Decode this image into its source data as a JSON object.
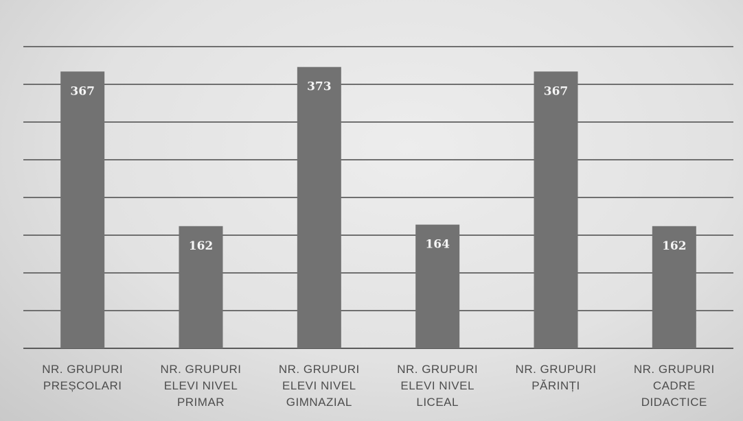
{
  "chart_data": {
    "type": "bar",
    "categories": [
      [
        "NR. GRUPURI",
        "PREȘCOLARI"
      ],
      [
        "NR. GRUPURI",
        "ELEVI NIVEL",
        "PRIMAR"
      ],
      [
        "NR. GRUPURI",
        "ELEVI NIVEL",
        "GIMNAZIAL"
      ],
      [
        "NR. GRUPURI",
        "ELEVI NIVEL",
        "LICEAL"
      ],
      [
        "NR. GRUPURI",
        "PĂRINȚI"
      ],
      [
        "NR. GRUPURI",
        "CADRE",
        "DIDACTICE"
      ]
    ],
    "values": [
      367,
      162,
      373,
      164,
      367,
      162
    ],
    "value_labels": [
      "367",
      "162",
      "373",
      "164",
      "367",
      "162"
    ],
    "ylim": [
      0,
      400
    ],
    "grid": true,
    "colors": {
      "bar": "#727272",
      "gridline": "#6f6f6f",
      "bar_label": "#f5f5f5",
      "category_label": "#4d4d4d"
    }
  }
}
